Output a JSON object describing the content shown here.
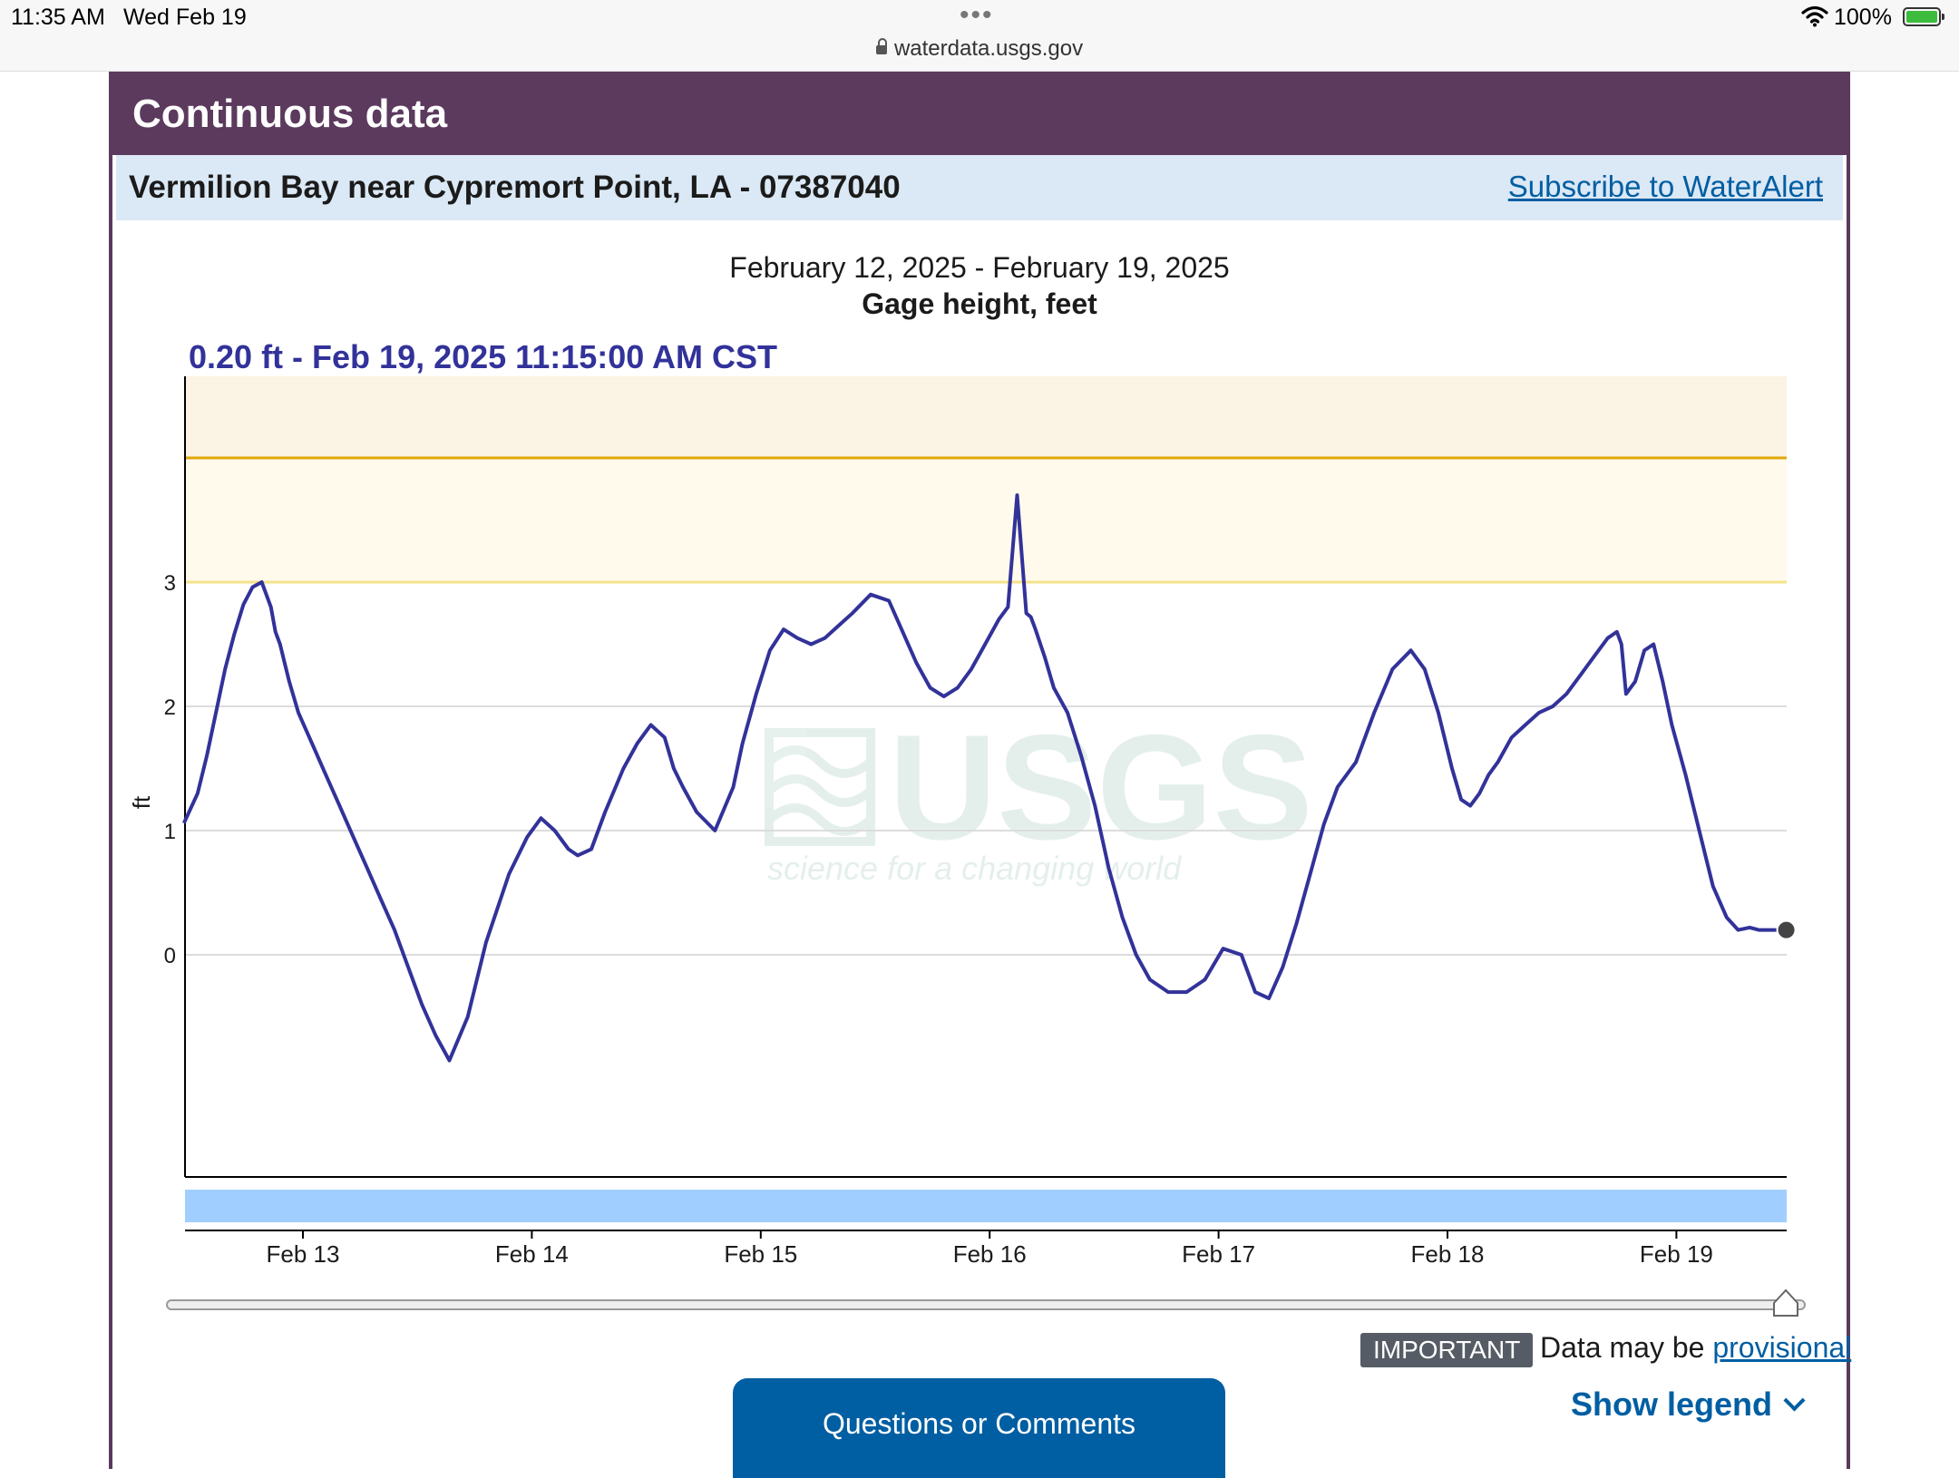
{
  "status_bar": {
    "time": "11:35 AM",
    "date": "Wed Feb 19",
    "dots": "•••",
    "url": "waterdata.usgs.gov",
    "battery": "100%"
  },
  "panel": {
    "title": "Continuous data",
    "site": "Vermilion Bay near Cypremort Point, LA - 07387040",
    "subscribe_label": "Subscribe to WaterAlert"
  },
  "chart_data": {
    "type": "line",
    "title": "February 12, 2025 - February 19, 2025",
    "subtitle": "Gage height, feet",
    "current_reading": "0.20 ft - Feb 19, 2025 11:15:00 AM CST",
    "ylabel": "ft",
    "yticks": [
      "3",
      "2",
      "1",
      "0"
    ],
    "ylim": [
      -1.8,
      4.6
    ],
    "xlim": [
      -0.52,
      6.5
    ],
    "xticks": [
      "Feb 13",
      "Feb 14",
      "Feb 15",
      "Feb 16",
      "Feb 17",
      "Feb 18",
      "Feb 19"
    ],
    "threshold_lines": [
      {
        "value": 4.0,
        "color": "#e0a80a"
      },
      {
        "value": 3.0,
        "color": "#f4e28a"
      }
    ],
    "watermark": {
      "logo": "USGS",
      "tagline": "science for a changing world"
    },
    "series": [
      {
        "color": "#32329a",
        "x": [
          -0.52,
          -0.46,
          -0.42,
          -0.38,
          -0.34,
          -0.3,
          -0.26,
          -0.22,
          -0.18,
          -0.14,
          -0.12,
          -0.1,
          -0.08,
          -0.06,
          -0.02,
          0.04,
          0.1,
          0.16,
          0.22,
          0.28,
          0.34,
          0.4,
          0.46,
          0.52,
          0.58,
          0.64,
          0.72,
          0.8,
          0.9,
          0.98,
          1.04,
          1.1,
          1.16,
          1.2,
          1.26,
          1.32,
          1.4,
          1.46,
          1.52,
          1.58,
          1.62,
          1.66,
          1.72,
          1.8,
          1.88,
          1.92,
          1.98,
          2.04,
          2.1,
          2.16,
          2.22,
          2.28,
          2.34,
          2.4,
          2.48,
          2.56,
          2.62,
          2.68,
          2.74,
          2.8,
          2.86,
          2.92,
          2.98,
          3.04,
          3.08,
          3.12,
          3.16,
          3.18,
          3.2,
          3.24,
          3.28,
          3.34,
          3.4,
          3.46,
          3.52,
          3.58,
          3.64,
          3.7,
          3.78,
          3.86,
          3.94,
          4.02,
          4.1,
          4.16,
          4.22,
          4.28,
          4.34,
          4.4,
          4.46,
          4.52,
          4.6,
          4.68,
          4.76,
          4.84,
          4.9,
          4.96,
          5.02,
          5.06,
          5.1,
          5.14,
          5.18,
          5.22,
          5.28,
          5.34,
          5.4,
          5.46,
          5.52,
          5.58,
          5.64,
          5.7,
          5.74,
          5.76,
          5.78,
          5.82,
          5.86,
          5.9,
          5.94,
          5.98,
          6.04,
          6.1,
          6.16,
          6.22,
          6.27,
          6.32,
          6.36,
          6.42,
          6.48
        ],
        "y": [
          1.06,
          1.3,
          1.6,
          1.95,
          2.3,
          2.58,
          2.82,
          2.96,
          3.0,
          2.8,
          2.6,
          2.5,
          2.35,
          2.2,
          1.95,
          1.7,
          1.45,
          1.2,
          0.95,
          0.7,
          0.45,
          0.2,
          -0.1,
          -0.4,
          -0.65,
          -0.85,
          -0.5,
          0.1,
          0.65,
          0.95,
          1.1,
          1.0,
          0.85,
          0.8,
          0.85,
          1.15,
          1.5,
          1.7,
          1.85,
          1.75,
          1.5,
          1.35,
          1.15,
          1.0,
          1.35,
          1.7,
          2.1,
          2.45,
          2.62,
          2.55,
          2.5,
          2.55,
          2.65,
          2.75,
          2.9,
          2.85,
          2.6,
          2.35,
          2.15,
          2.08,
          2.15,
          2.3,
          2.5,
          2.7,
          2.8,
          3.7,
          2.75,
          2.72,
          2.62,
          2.4,
          2.15,
          1.95,
          1.6,
          1.2,
          0.7,
          0.3,
          0.0,
          -0.2,
          -0.3,
          -0.3,
          -0.2,
          0.05,
          0.0,
          -0.3,
          -0.35,
          -0.1,
          0.25,
          0.65,
          1.05,
          1.35,
          1.55,
          1.95,
          2.3,
          2.45,
          2.3,
          1.95,
          1.5,
          1.25,
          1.2,
          1.3,
          1.45,
          1.55,
          1.75,
          1.85,
          1.95,
          2.0,
          2.1,
          2.25,
          2.4,
          2.55,
          2.6,
          2.5,
          2.1,
          2.2,
          2.45,
          2.5,
          2.2,
          1.85,
          1.45,
          1.0,
          0.55,
          0.3,
          0.2,
          0.22,
          0.2,
          0.2,
          0.2
        ]
      }
    ],
    "current_point": {
      "x": 6.48,
      "y": 0.2
    }
  },
  "footer": {
    "important": "IMPORTANT",
    "provisional_prefix": "Data may be ",
    "provisional_link": "provisional",
    "questions_label": "Questions or Comments",
    "legend_label": "Show legend"
  }
}
